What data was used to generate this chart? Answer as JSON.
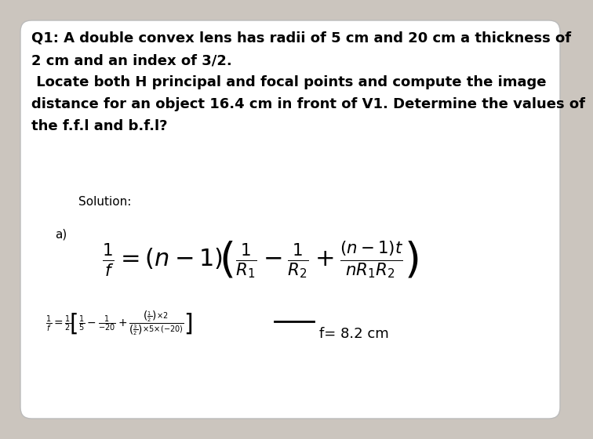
{
  "background_color": "#cbc5be",
  "box_color": "#ffffff",
  "title_lines": [
    "Q1: A double convex lens has radii of 5 cm and 20 cm a thickness of",
    "2 cm and an index of 3/2.",
    " Locate both H principal and focal points and compute the image",
    "distance for an object 16.4 cm in front of V1. Determine the values of",
    "the f.f.l and b.f.l?"
  ],
  "solution_label": "Solution:",
  "part_a_label": "a)",
  "result_text": "f= 8.2 cm",
  "title_fontsize": 13,
  "solution_fontsize": 11,
  "part_fontsize": 11,
  "formula_fontsize": 22,
  "num_formula_fontsize": 10,
  "result_fontsize": 13
}
